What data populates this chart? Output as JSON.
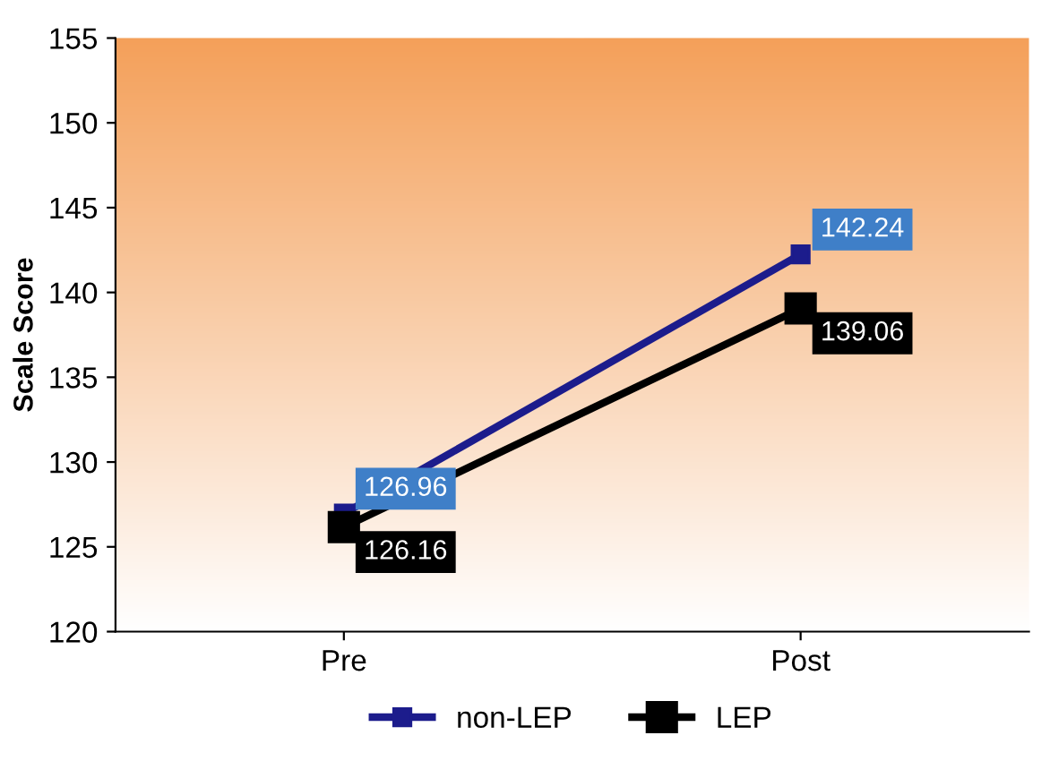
{
  "chart_data": {
    "type": "line",
    "ylabel": "Scale Score",
    "categories": [
      "Pre",
      "Post"
    ],
    "series": [
      {
        "name": "non-LEP",
        "color": "#1c1c8c",
        "values": [
          126.96,
          142.24
        ]
      },
      {
        "name": "LEP",
        "color": "#000000",
        "values": [
          126.16,
          139.06
        ]
      }
    ],
    "ylim": [
      120,
      155
    ],
    "yticks": [
      120,
      125,
      130,
      135,
      140,
      145,
      150,
      155
    ],
    "marker": "square",
    "line_style": "solid",
    "data_labels": true,
    "grid": false,
    "legend": "bottom"
  }
}
